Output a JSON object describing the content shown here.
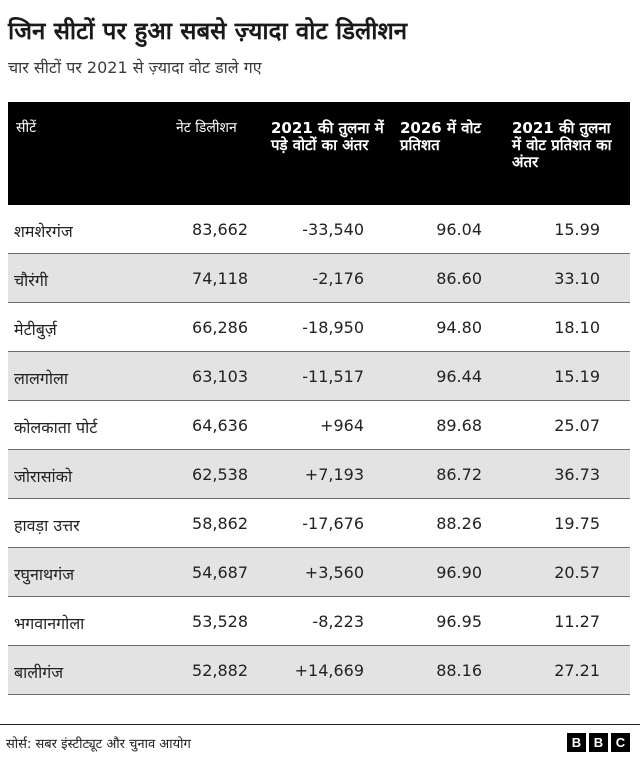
{
  "title": "जिन सीटों पर हुआ सबसे ज़्यादा वोट डिलीशन",
  "subtitle": "चार सीटों पर 2021 से ज़्यादा वोट डाले गए",
  "source": "सोर्स: सबर इंस्टीट्यूट और चुनाव आयोग",
  "logo": [
    "B",
    "B",
    "C"
  ],
  "chart_data": {
    "type": "table",
    "columns": [
      "सीटें",
      "नेट डिलीशन",
      "2021 की तुलना में पड़े वोटों का अंतर",
      "2026 में वोट प्रतिशत",
      "2021 की तुलना में वोट प्रतिशत का अंतर"
    ],
    "rows": [
      {
        "seat": "शमशेरगंज",
        "net_deletion": "83,662",
        "vote_diff": "-33,540",
        "pct_2026": "96.04",
        "pct_diff": "15.99"
      },
      {
        "seat": "चौरंगी",
        "net_deletion": "74,118",
        "vote_diff": "-2,176",
        "pct_2026": "86.60",
        "pct_diff": "33.10"
      },
      {
        "seat": "मेटीबुर्ज़",
        "net_deletion": "66,286",
        "vote_diff": "-18,950",
        "pct_2026": "94.80",
        "pct_diff": "18.10"
      },
      {
        "seat": "लालगोला",
        "net_deletion": "63,103",
        "vote_diff": "-11,517",
        "pct_2026": "96.44",
        "pct_diff": "15.19"
      },
      {
        "seat": "कोलकाता पोर्ट",
        "net_deletion": "64,636",
        "vote_diff": "+964",
        "pct_2026": "89.68",
        "pct_diff": "25.07"
      },
      {
        "seat": "जोरासांको",
        "net_deletion": "62,538",
        "vote_diff": "+7,193",
        "pct_2026": "86.72",
        "pct_diff": "36.73"
      },
      {
        "seat": "हावड़ा उत्तर",
        "net_deletion": "58,862",
        "vote_diff": "-17,676",
        "pct_2026": "88.26",
        "pct_diff": "19.75"
      },
      {
        "seat": "रघुनाथगंज",
        "net_deletion": "54,687",
        "vote_diff": "+3,560",
        "pct_2026": "96.90",
        "pct_diff": "20.57"
      },
      {
        "seat": "भगवानगोला",
        "net_deletion": "53,528",
        "vote_diff": "-8,223",
        "pct_2026": "96.95",
        "pct_diff": "11.27"
      },
      {
        "seat": "बालीगंज",
        "net_deletion": "52,882",
        "vote_diff": "+14,669",
        "pct_2026": "88.16",
        "pct_diff": "27.21"
      }
    ]
  }
}
